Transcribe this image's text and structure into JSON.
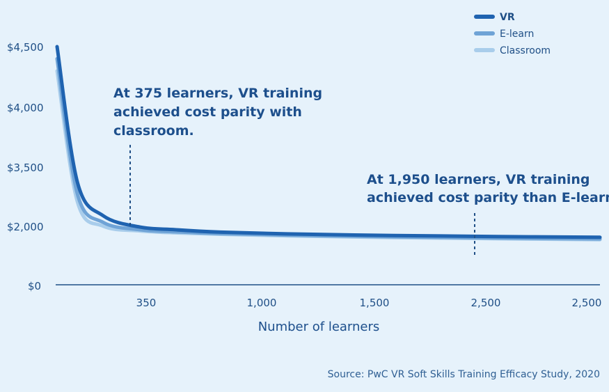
{
  "chart_data": {
    "type": "line",
    "title": "",
    "xlabel": "Number of learners",
    "ylabel": "",
    "x_ticks": [
      "350",
      "1,000",
      "1,500",
      "2,500",
      "2,500"
    ],
    "y_ticks": [
      "$0",
      "$2,000",
      "$3,500",
      "$4,000",
      "$4,500"
    ],
    "series": [
      {
        "name": "VR",
        "color": "#1f63b0",
        "points": [
          [
            30,
            4560
          ],
          [
            100,
            3100
          ],
          [
            200,
            2250
          ],
          [
            350,
            1950
          ],
          [
            500,
            1860
          ],
          [
            700,
            1780
          ],
          [
            1000,
            1720
          ],
          [
            1500,
            1665
          ],
          [
            2000,
            1630
          ],
          [
            2500,
            1605
          ]
        ]
      },
      {
        "name": "E-learn",
        "color": "#6fa3d6",
        "points": [
          [
            30,
            4400
          ],
          [
            100,
            2800
          ],
          [
            200,
            2080
          ],
          [
            350,
            1860
          ],
          [
            500,
            1790
          ],
          [
            700,
            1730
          ],
          [
            1000,
            1680
          ],
          [
            1500,
            1620
          ],
          [
            2000,
            1580
          ],
          [
            2500,
            1550
          ]
        ]
      },
      {
        "name": "Classroom",
        "color": "#a9cdeb",
        "points": [
          [
            30,
            4300
          ],
          [
            100,
            2600
          ],
          [
            200,
            1980
          ],
          [
            350,
            1820
          ],
          [
            500,
            1755
          ],
          [
            700,
            1705
          ],
          [
            1000,
            1655
          ],
          [
            1500,
            1595
          ],
          [
            2000,
            1555
          ],
          [
            2500,
            1525
          ]
        ]
      }
    ],
    "annotations": [
      {
        "lines": [
          "At 375 learners, VR training",
          "achieved cost parity with",
          "classroom."
        ],
        "x": 375
      },
      {
        "lines": [
          "At 1,950 learners, VR training",
          "achieved cost parity than E-learn"
        ],
        "x": 1950
      }
    ],
    "legend_position": "top-right",
    "grid": false
  },
  "source": "Source: PwC VR Soft Skills Training Efficacy Study, 2020"
}
